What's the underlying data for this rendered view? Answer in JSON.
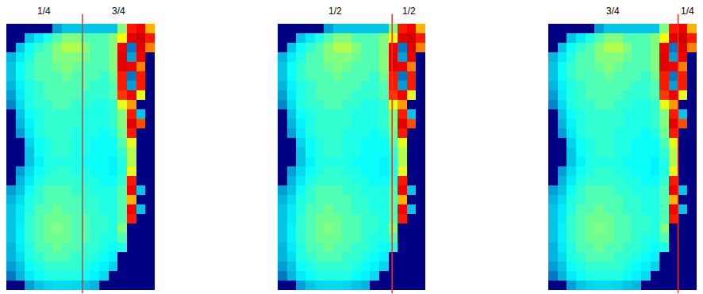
{
  "chart_data": {
    "type": "heatmap",
    "tick_labels": false,
    "xlim": [
      -0.5,
      15.5
    ],
    "ylim": [
      27.5,
      -0.5
    ],
    "zlim": [
      0,
      1
    ],
    "panels": [
      {
        "split_x": 7.7,
        "left_label": "1/4",
        "right_label": "3/4"
      },
      {
        "split_x": 11.9,
        "left_label": "1/2",
        "right_label": "1/2"
      },
      {
        "split_x": 13.5,
        "left_label": "3/4",
        "right_label": "1/4"
      }
    ],
    "z": [
      [
        0,
        0,
        0,
        0,
        0,
        0.25,
        0.3,
        0.3,
        0.3,
        0.3,
        0.3,
        0.3,
        0.5,
        0.85,
        0.88,
        0.7
      ],
      [
        0,
        0,
        0.3,
        0.35,
        0.4,
        0.45,
        0.5,
        0.5,
        0.45,
        0.45,
        0.45,
        0.5,
        0.62,
        0.9,
        0.92,
        0.85
      ],
      [
        0,
        0.3,
        0.38,
        0.42,
        0.45,
        0.5,
        0.55,
        0.55,
        0.5,
        0.45,
        0.45,
        0.5,
        0.88,
        0.2,
        0.9,
        0.75
      ],
      [
        0.28,
        0.35,
        0.4,
        0.45,
        0.45,
        0.5,
        0.5,
        0.5,
        0.48,
        0.45,
        0.45,
        0.5,
        0.9,
        0.25,
        0.88,
        0
      ],
      [
        0.3,
        0.38,
        0.42,
        0.45,
        0.45,
        0.48,
        0.5,
        0.48,
        0.45,
        0.45,
        0.45,
        0.5,
        0.9,
        0.88,
        0.75,
        0
      ],
      [
        0.3,
        0.38,
        0.42,
        0.45,
        0.45,
        0.45,
        0.48,
        0.45,
        0.45,
        0.45,
        0.42,
        0.48,
        0.85,
        0.2,
        0.85,
        0
      ],
      [
        0.28,
        0.36,
        0.4,
        0.42,
        0.45,
        0.45,
        0.45,
        0.45,
        0.45,
        0.42,
        0.42,
        0.45,
        0.85,
        0.25,
        0.85,
        0
      ],
      [
        0.25,
        0.35,
        0.4,
        0.42,
        0.45,
        0.45,
        0.45,
        0.45,
        0.42,
        0.42,
        0.42,
        0.45,
        0.82,
        0.88,
        0.6,
        0
      ],
      [
        0.22,
        0.33,
        0.4,
        0.42,
        0.42,
        0.45,
        0.45,
        0.42,
        0.42,
        0.4,
        0.4,
        0.42,
        0.6,
        0.72,
        0,
        0
      ],
      [
        0,
        0.3,
        0.38,
        0.4,
        0.42,
        0.42,
        0.42,
        0.42,
        0.4,
        0.4,
        0.4,
        0.42,
        0.5,
        0.85,
        0.3,
        0
      ],
      [
        0,
        0.28,
        0.36,
        0.4,
        0.42,
        0.42,
        0.42,
        0.42,
        0.4,
        0.4,
        0.4,
        0.42,
        0.5,
        0.9,
        0.8,
        0
      ],
      [
        0,
        0.25,
        0.35,
        0.4,
        0.42,
        0.42,
        0.42,
        0.4,
        0.4,
        0.4,
        0.38,
        0.4,
        0.48,
        0.85,
        0,
        0
      ],
      [
        0,
        0,
        0.32,
        0.38,
        0.4,
        0.42,
        0.42,
        0.4,
        0.4,
        0.38,
        0.38,
        0.38,
        0.45,
        0.6,
        0,
        0
      ],
      [
        0,
        0,
        0.3,
        0.38,
        0.4,
        0.42,
        0.42,
        0.4,
        0.4,
        0.38,
        0.38,
        0.38,
        0.42,
        0.55,
        0,
        0
      ],
      [
        0,
        0,
        0.3,
        0.36,
        0.4,
        0.4,
        0.4,
        0.4,
        0.38,
        0.38,
        0.38,
        0.36,
        0.4,
        0.55,
        0,
        0
      ],
      [
        0,
        0.25,
        0.33,
        0.38,
        0.4,
        0.42,
        0.42,
        0.4,
        0.4,
        0.38,
        0.38,
        0.36,
        0.4,
        0.6,
        0,
        0
      ],
      [
        0,
        0.28,
        0.35,
        0.4,
        0.42,
        0.42,
        0.42,
        0.42,
        0.4,
        0.4,
        0.38,
        0.38,
        0.42,
        0.85,
        0,
        0
      ],
      [
        0.25,
        0.3,
        0.38,
        0.42,
        0.45,
        0.45,
        0.45,
        0.42,
        0.42,
        0.4,
        0.4,
        0.4,
        0.45,
        0.88,
        0.3,
        0
      ],
      [
        0.28,
        0.33,
        0.4,
        0.42,
        0.45,
        0.45,
        0.45,
        0.45,
        0.42,
        0.42,
        0.4,
        0.4,
        0.45,
        0.7,
        0,
        0
      ],
      [
        0.3,
        0.35,
        0.4,
        0.45,
        0.45,
        0.48,
        0.45,
        0.45,
        0.42,
        0.42,
        0.4,
        0.4,
        0.45,
        0.88,
        0.3,
        0
      ],
      [
        0.3,
        0.35,
        0.42,
        0.45,
        0.48,
        0.48,
        0.48,
        0.45,
        0.45,
        0.42,
        0.42,
        0.4,
        0.45,
        0.85,
        0,
        0
      ],
      [
        0.3,
        0.36,
        0.42,
        0.45,
        0.48,
        0.5,
        0.48,
        0.45,
        0.45,
        0.42,
        0.42,
        0.4,
        0.5,
        0,
        0,
        0
      ],
      [
        0.3,
        0.36,
        0.42,
        0.45,
        0.48,
        0.48,
        0.48,
        0.45,
        0.45,
        0.42,
        0.4,
        0.4,
        0.45,
        0,
        0,
        0
      ],
      [
        0.28,
        0.35,
        0.4,
        0.45,
        0.45,
        0.48,
        0.45,
        0.45,
        0.42,
        0.42,
        0.4,
        0.38,
        0.4,
        0,
        0,
        0
      ],
      [
        0.28,
        0.33,
        0.4,
        0.42,
        0.45,
        0.45,
        0.45,
        0.42,
        0.42,
        0.4,
        0.38,
        0.36,
        0,
        0,
        0,
        0
      ],
      [
        0.25,
        0.3,
        0.38,
        0.4,
        0.42,
        0.42,
        0.42,
        0.42,
        0.4,
        0.38,
        0.36,
        0.32,
        0,
        0,
        0,
        0
      ],
      [
        0.2,
        0.28,
        0.35,
        0.38,
        0.4,
        0.4,
        0.4,
        0.4,
        0.38,
        0.36,
        0.33,
        0,
        0,
        0,
        0,
        0
      ],
      [
        0,
        0,
        0.25,
        0.3,
        0.32,
        0.33,
        0.33,
        0.32,
        0.3,
        0.28,
        0,
        0,
        0,
        0,
        0,
        0
      ]
    ]
  }
}
